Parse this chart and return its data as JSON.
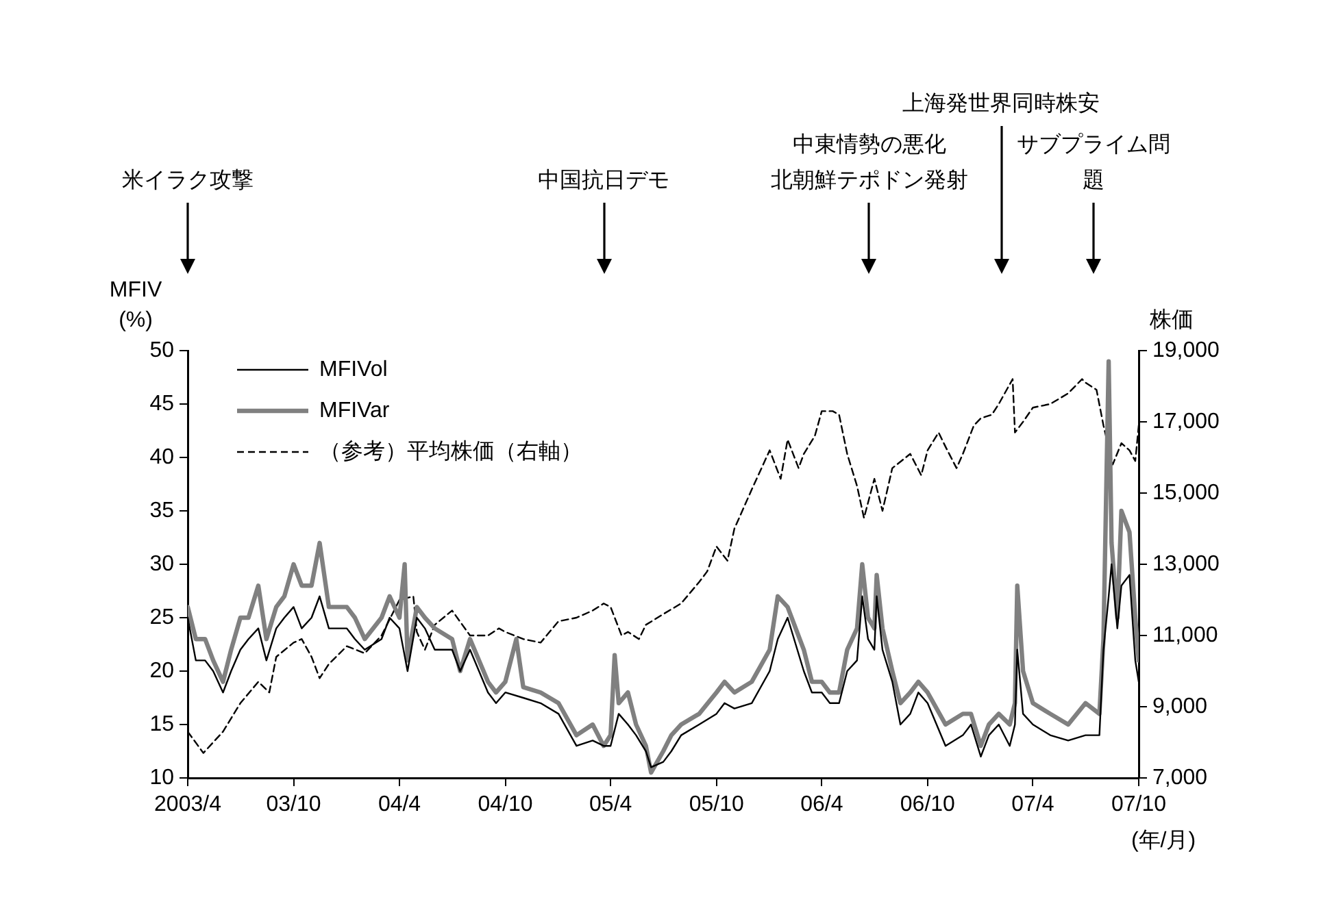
{
  "chart_data": {
    "type": "line",
    "ylabel": "MFIV\n(%)",
    "y2label": "株価",
    "xlabel": "(年/月)",
    "xlim": [
      "2003-04",
      "2007-10"
    ],
    "xticks": [
      {
        "value": "2003-04",
        "label": "2003/4"
      },
      {
        "value": "2003-10",
        "label": "03/10"
      },
      {
        "value": "2004-04",
        "label": "04/4"
      },
      {
        "value": "2004-10",
        "label": "04/10"
      },
      {
        "value": "2005-04",
        "label": "05/4"
      },
      {
        "value": "2005-10",
        "label": "05/10"
      },
      {
        "value": "2006-04",
        "label": "06/4"
      },
      {
        "value": "2006-10",
        "label": "06/10"
      },
      {
        "value": "2007-04",
        "label": "07/4"
      },
      {
        "value": "2007-10",
        "label": "07/10"
      }
    ],
    "ylim": [
      10,
      50
    ],
    "yticks": [
      10,
      15,
      20,
      25,
      30,
      35,
      40,
      45,
      50
    ],
    "y2lim": [
      7000,
      19000
    ],
    "y2ticks": [
      {
        "value": 7000,
        "label": "7,000"
      },
      {
        "value": 9000,
        "label": "9,000"
      },
      {
        "value": 11000,
        "label": "11,000"
      },
      {
        "value": 13000,
        "label": "13,000"
      },
      {
        "value": 15000,
        "label": "15,000"
      },
      {
        "value": 17000,
        "label": "17,000"
      },
      {
        "value": 19000,
        "label": "19,000"
      }
    ],
    "grid": false,
    "legend": "top left",
    "marker": "none",
    "annotations": [
      "米イラク攻撃",
      "中国抗日デモ",
      "中東情勢の悪化",
      "北朝鮮テポドン発射",
      "上海発世界同時株安",
      "サブプライム問題"
    ],
    "series": [
      {
        "name": "MFIVol",
        "color": "#000000",
        "line_style": "solid",
        "x": [
          "2003-04",
          "2003-04-15",
          "2003-05-01",
          "2003-05-15",
          "2003-06-01",
          "2003-06-15",
          "2003-07-01",
          "2003-07-15",
          "2003-08-01",
          "2003-08-15",
          "2003-09-01",
          "2003-09-15",
          "2003-10-01",
          "2003-10-15",
          "2003-11-01",
          "2003-11-15",
          "2003-12-01",
          "2004-01-01",
          "2004-01-15",
          "2004-02-01",
          "2004-03-01",
          "2004-03-15",
          "2004-04-01",
          "2004-04-15",
          "2004-05-01",
          "2004-05-15",
          "2004-06-01",
          "2004-07-01",
          "2004-07-15",
          "2004-08-01",
          "2004-09-01",
          "2004-09-15",
          "2004-10-01",
          "2004-11-01",
          "2004-12-01",
          "2005-01-01",
          "2005-02-01",
          "2005-03-01",
          "2005-03-20",
          "2005-04-01",
          "2005-04-15",
          "2005-05-01",
          "2005-05-15",
          "2005-06-01",
          "2005-06-10",
          "2005-07-01",
          "2005-07-15",
          "2005-08-01",
          "2005-09-01",
          "2005-10-01",
          "2005-10-15",
          "2005-11-01",
          "2005-12-01",
          "2006-01-01",
          "2006-01-15",
          "2006-02-01",
          "2006-03-01",
          "2006-03-15",
          "2006-04-01",
          "2006-04-15",
          "2006-05-01",
          "2006-05-15",
          "2006-06-01",
          "2006-06-10",
          "2006-06-20",
          "2006-07-01",
          "2006-07-05",
          "2006-07-15",
          "2006-08-01",
          "2006-08-15",
          "2006-09-01",
          "2006-09-15",
          "2006-10-01",
          "2006-11-01",
          "2006-12-01",
          "2006-12-15",
          "2007-01-01",
          "2007-01-15",
          "2007-02-01",
          "2007-02-20",
          "2007-03-01",
          "2007-03-05",
          "2007-03-15",
          "2007-04-01",
          "2007-05-01",
          "2007-06-01",
          "2007-07-01",
          "2007-07-25",
          "2007-08-01",
          "2007-08-10",
          "2007-08-15",
          "2007-08-25",
          "2007-09-01",
          "2007-09-15",
          "2007-09-25",
          "2007-10-01"
        ],
        "values": [
          25,
          21,
          21,
          20,
          18,
          20,
          22,
          23,
          24,
          21,
          24,
          25,
          26,
          24,
          25,
          27,
          24,
          24,
          23,
          22,
          23,
          25,
          24,
          20,
          25,
          24,
          22,
          22,
          20,
          22,
          18,
          17,
          18,
          17.5,
          17,
          16,
          13,
          13.5,
          13,
          13,
          16,
          15,
          14,
          12.5,
          11,
          11.5,
          12.5,
          14,
          15,
          16,
          17,
          16.5,
          17,
          20,
          23,
          25,
          20,
          18,
          18,
          17,
          17,
          20,
          21,
          27,
          23,
          22,
          27,
          22,
          19,
          15,
          16,
          18,
          17,
          13,
          14,
          15,
          12,
          14,
          15,
          13,
          15,
          22,
          16,
          15,
          14,
          13.5,
          14,
          14,
          22,
          27,
          30,
          24,
          28,
          29,
          21,
          19
        ]
      },
      {
        "name": "MFIVar",
        "color": "#808080",
        "line_style": "solid",
        "x": [
          "2003-04",
          "2003-04-15",
          "2003-05-01",
          "2003-05-15",
          "2003-06-01",
          "2003-06-15",
          "2003-07-01",
          "2003-07-15",
          "2003-08-01",
          "2003-08-15",
          "2003-09-01",
          "2003-09-15",
          "2003-10-01",
          "2003-10-15",
          "2003-11-01",
          "2003-11-15",
          "2003-12-01",
          "2004-01-01",
          "2004-01-15",
          "2004-02-01",
          "2004-03-01",
          "2004-03-15",
          "2004-04-01",
          "2004-04-10",
          "2004-04-15",
          "2004-05-01",
          "2004-05-15",
          "2004-06-01",
          "2004-07-01",
          "2004-07-15",
          "2004-08-01",
          "2004-09-01",
          "2004-09-15",
          "2004-10-01",
          "2004-10-20",
          "2004-11-01",
          "2004-12-01",
          "2005-01-01",
          "2005-02-01",
          "2005-03-01",
          "2005-03-20",
          "2005-04-01",
          "2005-04-08",
          "2005-04-15",
          "2005-05-01",
          "2005-05-15",
          "2005-06-01",
          "2005-06-10",
          "2005-07-01",
          "2005-07-15",
          "2005-08-01",
          "2005-09-01",
          "2005-10-01",
          "2005-10-15",
          "2005-11-01",
          "2005-12-01",
          "2006-01-01",
          "2006-01-15",
          "2006-02-01",
          "2006-03-01",
          "2006-03-15",
          "2006-04-01",
          "2006-04-15",
          "2006-05-01",
          "2006-05-15",
          "2006-06-01",
          "2006-06-10",
          "2006-06-20",
          "2006-07-01",
          "2006-07-05",
          "2006-07-15",
          "2006-08-01",
          "2006-08-15",
          "2006-09-01",
          "2006-09-15",
          "2006-10-01",
          "2006-11-01",
          "2006-12-01",
          "2006-12-15",
          "2007-01-01",
          "2007-01-15",
          "2007-02-01",
          "2007-02-20",
          "2007-03-01",
          "2007-03-05",
          "2007-03-15",
          "2007-04-01",
          "2007-05-01",
          "2007-06-01",
          "2007-07-01",
          "2007-07-25",
          "2007-08-01",
          "2007-08-10",
          "2007-08-15",
          "2007-08-25",
          "2007-09-01",
          "2007-09-15",
          "2007-09-25",
          "2007-10-01"
        ],
        "values": [
          26,
          23,
          23,
          21,
          19,
          22,
          25,
          25,
          28,
          23,
          26,
          27,
          30,
          28,
          28,
          32,
          26,
          26,
          25,
          23,
          25,
          27,
          25,
          30,
          21,
          26,
          25,
          24,
          23,
          20,
          23,
          19,
          18,
          19,
          23,
          18.5,
          18,
          17,
          14,
          15,
          13,
          14,
          21.5,
          17,
          18,
          15,
          13,
          10.5,
          12.5,
          14,
          15,
          16,
          18,
          19,
          18,
          19,
          22,
          27,
          26,
          22,
          19,
          19,
          18,
          18,
          22,
          24,
          30,
          25,
          24,
          29,
          24,
          20,
          17,
          18,
          19,
          18,
          15,
          16,
          16,
          13,
          15,
          16,
          15,
          17,
          28,
          20,
          17,
          16,
          15,
          17,
          16,
          23,
          49,
          32,
          25,
          35,
          33,
          25,
          21
        ]
      },
      {
        "name": "（参考）平均株価（右軸）",
        "color": "#000000",
        "line_style": "dashed",
        "axis": "y2",
        "x": [
          "2003-04",
          "2003-04-28",
          "2003-05-15",
          "2003-06-01",
          "2003-07-01",
          "2003-08-01",
          "2003-08-20",
          "2003-09-01",
          "2003-10-01",
          "2003-10-15",
          "2003-11-01",
          "2003-11-15",
          "2003-12-01",
          "2004-01-01",
          "2004-02-01",
          "2004-03-01",
          "2004-04-01",
          "2004-04-25",
          "2004-05-01",
          "2004-05-15",
          "2004-06-01",
          "2004-07-01",
          "2004-08-01",
          "2004-09-01",
          "2004-09-20",
          "2004-10-01",
          "2004-11-01",
          "2004-12-01",
          "2005-01-01",
          "2005-02-01",
          "2005-03-01",
          "2005-03-20",
          "2005-04-01",
          "2005-04-20",
          "2005-05-01",
          "2005-05-20",
          "2005-06-01",
          "2005-07-01",
          "2005-08-01",
          "2005-09-01",
          "2005-09-15",
          "2005-10-01",
          "2005-10-20",
          "2005-11-01",
          "2005-12-01",
          "2006-01-01",
          "2006-01-20",
          "2006-02-01",
          "2006-02-20",
          "2006-03-01",
          "2006-03-20",
          "2006-04-01",
          "2006-04-20",
          "2006-05-01",
          "2006-05-15",
          "2006-06-01",
          "2006-06-13",
          "2006-07-01",
          "2006-07-15",
          "2006-08-01",
          "2006-09-01",
          "2006-09-20",
          "2006-10-01",
          "2006-10-20",
          "2006-11-01",
          "2006-11-20",
          "2006-12-01",
          "2006-12-20",
          "2007-01-01",
          "2007-01-20",
          "2007-02-01",
          "2007-02-25",
          "2007-03-01",
          "2007-03-15",
          "2007-04-01",
          "2007-05-01",
          "2007-06-01",
          "2007-06-25",
          "2007-07-01",
          "2007-07-20",
          "2007-08-01",
          "2007-08-17",
          "2007-09-01",
          "2007-09-15",
          "2007-09-25",
          "2007-10-01"
        ],
        "values": [
          8300,
          7700,
          8000,
          8300,
          9100,
          9700,
          9400,
          10400,
          10800,
          10900,
          10400,
          9800,
          10200,
          10700,
          10500,
          11000,
          12000,
          12100,
          11100,
          10600,
          11300,
          11700,
          11000,
          11000,
          11200,
          11100,
          10900,
          10800,
          11400,
          11500,
          11700,
          11900,
          11800,
          11000,
          11100,
          10900,
          11300,
          11600,
          11900,
          12500,
          12800,
          13500,
          13100,
          14000,
          15100,
          16200,
          15400,
          16500,
          15700,
          16100,
          16600,
          17300,
          17300,
          17200,
          16100,
          15200,
          14300,
          15400,
          14500,
          15700,
          16100,
          15500,
          16200,
          16700,
          16300,
          15700,
          16100,
          16900,
          17100,
          17200,
          17500,
          18200,
          16700,
          17000,
          17400,
          17500,
          17800,
          18200,
          18100,
          17900,
          16900,
          15800,
          16400,
          16200,
          15900,
          16900
        ]
      }
    ]
  }
}
